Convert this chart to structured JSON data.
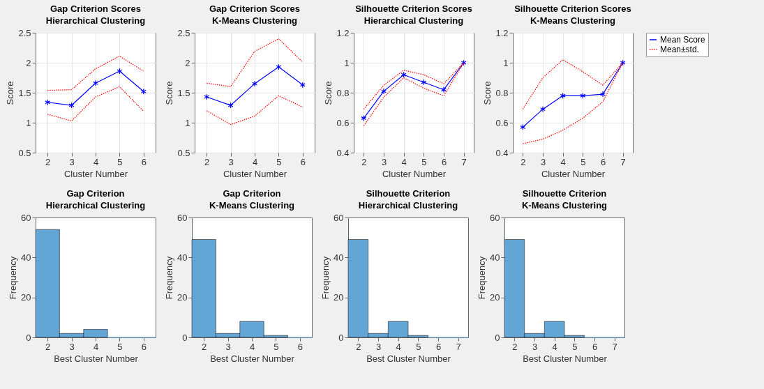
{
  "chart_data": [
    {
      "type": "line",
      "title": "Gap Criterion Scores",
      "subtitle": "Hierarchical Clustering",
      "xlabel": "Cluster Number",
      "ylabel": "Score",
      "x": [
        2,
        3,
        4,
        5,
        6
      ],
      "xlim": [
        1.5,
        6.5
      ],
      "xticks": [
        2,
        3,
        4,
        5,
        6
      ],
      "ylim": [
        0.5,
        2.5
      ],
      "yticks": [
        0.5,
        1,
        1.5,
        2,
        2.5
      ],
      "grid": true,
      "series": [
        {
          "color": "#0000ff",
          "marker": "cross",
          "line_style": "solid",
          "values": [
            1.34,
            1.29,
            1.66,
            1.86,
            1.52
          ]
        },
        {
          "color": "#ff0000",
          "line_style": "dotted",
          "values": [
            1.54,
            1.55,
            1.9,
            2.11,
            1.86
          ]
        },
        {
          "color": "#ff0000",
          "line_style": "dotted",
          "values": [
            1.14,
            1.03,
            1.43,
            1.6,
            1.19
          ]
        }
      ]
    },
    {
      "type": "line",
      "title": "Gap Criterion Scores",
      "subtitle": "K-Means Clustering",
      "xlabel": "Cluster Number",
      "ylabel": "Score",
      "x": [
        2,
        3,
        4,
        5,
        6
      ],
      "xlim": [
        1.5,
        6.5
      ],
      "xticks": [
        2,
        3,
        4,
        5,
        6
      ],
      "ylim": [
        0.5,
        2.5
      ],
      "yticks": [
        0.5,
        1,
        1.5,
        2,
        2.5
      ],
      "grid": true,
      "series": [
        {
          "color": "#0000ff",
          "marker": "cross",
          "line_style": "solid",
          "values": [
            1.43,
            1.29,
            1.65,
            1.93,
            1.63
          ]
        },
        {
          "color": "#ff0000",
          "line_style": "dotted",
          "values": [
            1.66,
            1.6,
            2.19,
            2.4,
            2.01
          ]
        },
        {
          "color": "#ff0000",
          "line_style": "dotted",
          "values": [
            1.2,
            0.97,
            1.11,
            1.45,
            1.26
          ]
        }
      ]
    },
    {
      "type": "line",
      "title": "Silhouette Criterion Scores",
      "subtitle": "Hierarchical Clustering",
      "xlabel": "Cluster Number",
      "ylabel": "Score",
      "x": [
        2,
        3,
        4,
        5,
        6,
        7
      ],
      "xlim": [
        1.5,
        7.5
      ],
      "xticks": [
        2,
        3,
        4,
        5,
        6,
        7
      ],
      "ylim": [
        0.4,
        1.2
      ],
      "yticks": [
        0.4,
        0.6,
        0.8,
        1,
        1.2
      ],
      "grid": true,
      "series": [
        {
          "color": "#0000ff",
          "marker": "cross",
          "line_style": "solid",
          "values": [
            0.63,
            0.81,
            0.92,
            0.87,
            0.82,
            1.0
          ]
        },
        {
          "color": "#ff0000",
          "line_style": "dotted",
          "values": [
            0.69,
            0.85,
            0.95,
            0.92,
            0.86,
            1.0
          ]
        },
        {
          "color": "#ff0000",
          "line_style": "dotted",
          "values": [
            0.58,
            0.77,
            0.9,
            0.83,
            0.78,
            1.0
          ]
        }
      ]
    },
    {
      "type": "line",
      "title": "Silhouette Criterion Scores",
      "subtitle": "K-Means Clustering",
      "xlabel": "Cluster Number",
      "ylabel": "Score",
      "x": [
        2,
        3,
        4,
        5,
        6,
        7
      ],
      "xlim": [
        1.5,
        7.5
      ],
      "xticks": [
        2,
        3,
        4,
        5,
        6,
        7
      ],
      "ylim": [
        0.4,
        1.2
      ],
      "yticks": [
        0.4,
        0.6,
        0.8,
        1,
        1.2
      ],
      "grid": true,
      "legend": "right",
      "series": [
        {
          "name": "Mean Score",
          "color": "#0000ff",
          "marker": "cross",
          "line_style": "solid",
          "values": [
            0.57,
            0.69,
            0.78,
            0.78,
            0.79,
            1.0
          ]
        },
        {
          "name": "Mean±std.",
          "color": "#ff0000",
          "line_style": "dotted",
          "values": [
            0.69,
            0.9,
            1.02,
            0.94,
            0.85,
            1.0
          ]
        },
        {
          "color": "#ff0000",
          "line_style": "dotted",
          "values": [
            0.46,
            0.49,
            0.55,
            0.63,
            0.74,
            1.0
          ]
        }
      ]
    },
    {
      "type": "histogram",
      "title": "Gap Criterion",
      "subtitle": "Hierarchical Clustering",
      "xlabel": "Best Cluster Number",
      "ylabel": "Frequency",
      "bins": [
        1.5,
        2.5,
        3.5,
        4.5,
        5.5,
        6.5
      ],
      "values": [
        54,
        2,
        4,
        0,
        0
      ],
      "color": "#63a6d6",
      "xlim": [
        1.5,
        6.5
      ],
      "xticks": [
        2,
        3,
        4,
        5,
        6
      ],
      "ylim": [
        0,
        60
      ],
      "yticks": [
        0,
        20,
        40,
        60
      ]
    },
    {
      "type": "histogram",
      "title": "Gap Criterion",
      "subtitle": "K-Means Clustering",
      "xlabel": "Best Cluster Number",
      "ylabel": "Frequency",
      "bins": [
        1.5,
        2.5,
        3.5,
        4.5,
        5.5,
        6.5
      ],
      "values": [
        49,
        2,
        8,
        1,
        0
      ],
      "color": "#63a6d6",
      "xlim": [
        1.5,
        6.5
      ],
      "xticks": [
        2,
        3,
        4,
        5,
        6
      ],
      "ylim": [
        0,
        60
      ],
      "yticks": [
        0,
        20,
        40,
        60
      ]
    },
    {
      "type": "histogram",
      "title": "Silhouette Criterion",
      "subtitle": "Hierarchical Clustering",
      "xlabel": "Best Cluster Number",
      "ylabel": "Frequency",
      "bins": [
        1.5,
        2.5,
        3.5,
        4.5,
        5.5,
        6.5,
        7.5
      ],
      "values": [
        49,
        2,
        8,
        1,
        0,
        0
      ],
      "color": "#63a6d6",
      "xlim": [
        1.5,
        7.5
      ],
      "xticks": [
        2,
        3,
        4,
        5,
        6,
        7
      ],
      "ylim": [
        0,
        60
      ],
      "yticks": [
        0,
        20,
        40,
        60
      ]
    },
    {
      "type": "histogram",
      "title": "Silhouette Criterion",
      "subtitle": "K-Means Clustering",
      "xlabel": "Best Cluster Number",
      "ylabel": "Frequency",
      "bins": [
        1.5,
        2.5,
        3.5,
        4.5,
        5.5,
        6.5,
        7.5
      ],
      "values": [
        49,
        2,
        8,
        1,
        0,
        0
      ],
      "color": "#63a6d6",
      "xlim": [
        1.5,
        7.5
      ],
      "xticks": [
        2,
        3,
        4,
        5,
        6,
        7
      ],
      "ylim": [
        0,
        60
      ],
      "yticks": [
        0,
        20,
        40,
        60
      ]
    }
  ]
}
